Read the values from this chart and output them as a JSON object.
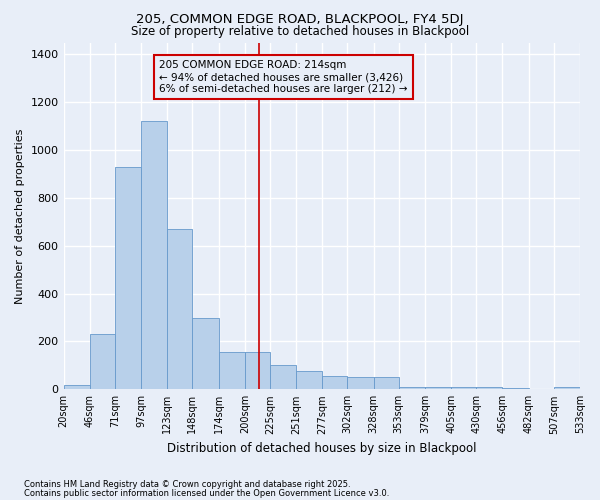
{
  "title": "205, COMMON EDGE ROAD, BLACKPOOL, FY4 5DJ",
  "subtitle": "Size of property relative to detached houses in Blackpool",
  "xlabel": "Distribution of detached houses by size in Blackpool",
  "ylabel": "Number of detached properties",
  "annotation_title": "205 COMMON EDGE ROAD: 214sqm",
  "annotation_line1": "← 94% of detached houses are smaller (3,426)",
  "annotation_line2": "6% of semi-detached houses are larger (212) →",
  "footer1": "Contains HM Land Registry data © Crown copyright and database right 2025.",
  "footer2": "Contains public sector information licensed under the Open Government Licence v3.0.",
  "bar_color": "#b8d0ea",
  "bar_edge_color": "#6699cc",
  "bg_color": "#e8eef8",
  "grid_color": "#ffffff",
  "vline_color": "#cc0000",
  "annotation_box_facecolor": "#e8eef8",
  "annotation_box_edgecolor": "#cc0000",
  "vline_x": 214,
  "bin_edges": [
    20,
    46,
    71,
    97,
    123,
    148,
    174,
    200,
    225,
    251,
    277,
    302,
    328,
    353,
    379,
    405,
    430,
    456,
    482,
    507,
    533
  ],
  "bar_heights": [
    20,
    230,
    930,
    1120,
    670,
    300,
    155,
    155,
    100,
    75,
    55,
    50,
    50,
    8,
    8,
    8,
    8,
    5,
    0,
    10
  ],
  "ylim": [
    0,
    1450
  ],
  "xlim": [
    20,
    533
  ],
  "ytick_values": [
    0,
    200,
    400,
    600,
    800,
    1000,
    1200,
    1400
  ]
}
